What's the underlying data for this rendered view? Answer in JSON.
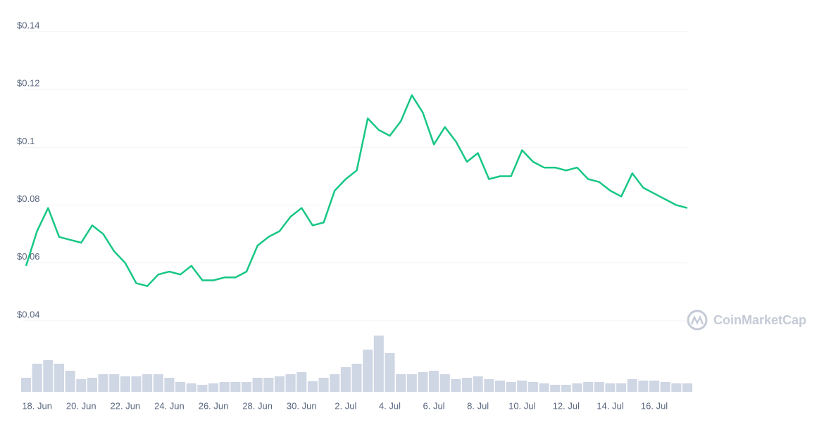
{
  "chart_data": {
    "type": "line",
    "categories": [
      null,
      "18. Jun",
      null,
      null,
      null,
      "20. Jun",
      null,
      null,
      null,
      "22. Jun",
      null,
      null,
      null,
      "24. Jun",
      null,
      null,
      null,
      "26. Jun",
      null,
      null,
      null,
      "28. Jun",
      null,
      null,
      null,
      "30. Jun",
      null,
      null,
      null,
      "2. Jul",
      null,
      null,
      null,
      "4. Jul",
      null,
      null,
      null,
      "6. Jul",
      null,
      null,
      null,
      "8. Jul",
      null,
      null,
      null,
      "10. Jul",
      null,
      null,
      null,
      "12. Jul",
      null,
      null,
      null,
      "14. Jul",
      null,
      null,
      null,
      "16. Jul",
      null,
      null,
      null
    ],
    "series": [
      {
        "color": "#16c784",
        "values": [
          0.059,
          0.071,
          0.079,
          0.069,
          0.068,
          0.067,
          0.073,
          0.07,
          0.064,
          0.06,
          0.053,
          0.052,
          0.056,
          0.057,
          0.056,
          0.059,
          0.054,
          0.054,
          0.055,
          0.055,
          0.057,
          0.066,
          0.069,
          0.071,
          0.076,
          0.079,
          0.073,
          0.074,
          0.085,
          0.089,
          0.092,
          0.11,
          0.106,
          0.104,
          0.109,
          0.118,
          0.112,
          0.101,
          0.107,
          0.102,
          0.095,
          0.098,
          0.089,
          0.09,
          0.09,
          0.099,
          0.095,
          0.093,
          0.093,
          0.092,
          0.093,
          0.089,
          0.088,
          0.085,
          0.083,
          0.091,
          0.086,
          0.084,
          0.082,
          0.08,
          0.079
        ]
      },
      {
        "color": "#cfd6e4",
        "values": [
          20,
          40,
          45,
          40,
          30,
          18,
          20,
          25,
          25,
          22,
          22,
          25,
          25,
          20,
          14,
          12,
          10,
          12,
          14,
          14,
          14,
          20,
          20,
          22,
          25,
          28,
          15,
          20,
          25,
          35,
          40,
          60,
          80,
          55,
          25,
          25,
          28,
          30,
          25,
          18,
          20,
          22,
          18,
          16,
          14,
          16,
          14,
          12,
          10,
          10,
          12,
          14,
          14,
          12,
          12,
          18,
          16,
          16,
          14,
          12,
          12
        ]
      }
    ],
    "ylim": [
      0.04,
      0.14
    ],
    "yticks": [
      {
        "value": 0.04,
        "label": "$0.04"
      },
      {
        "value": 0.06,
        "label": "$0.06"
      },
      {
        "value": 0.08,
        "label": "$0.08"
      },
      {
        "value": 0.1,
        "label": "$0.1"
      },
      {
        "value": 0.12,
        "label": "$0.12"
      },
      {
        "value": 0.14,
        "label": "$0.14"
      }
    ],
    "grid": true,
    "watermark": "CoinMarketCap"
  }
}
